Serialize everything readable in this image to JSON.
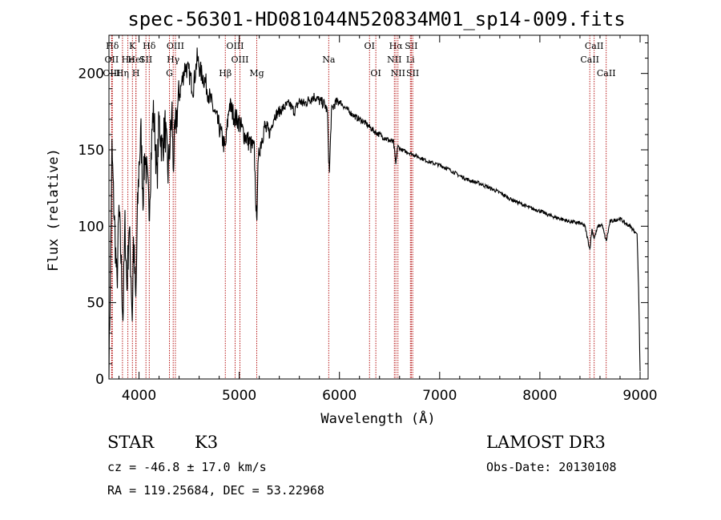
{
  "chart_data": {
    "type": "line",
    "title": "spec-56301-HD081044N520834M01_sp14-009.fits",
    "xlabel": "Wavelength (Å)",
    "ylabel": "Flux (relative)",
    "xlim": [
      3700,
      9080
    ],
    "ylim": [
      0,
      225
    ],
    "x_ticks": [
      4000,
      5000,
      6000,
      7000,
      8000,
      9000
    ],
    "y_ticks": [
      0,
      50,
      100,
      150,
      200
    ],
    "grid": false,
    "series": [
      {
        "name": "flux",
        "x": [
          3700,
          3715,
          3730,
          3745,
          3760,
          3780,
          3800,
          3820,
          3840,
          3860,
          3880,
          3900,
          3920,
          3933,
          3945,
          3968,
          3985,
          4000,
          4020,
          4040,
          4060,
          4080,
          4101,
          4120,
          4140,
          4160,
          4180,
          4200,
          4230,
          4260,
          4290,
          4310,
          4330,
          4340,
          4360,
          4380,
          4400,
          4430,
          4460,
          4500,
          4540,
          4580,
          4620,
          4660,
          4700,
          4750,
          4800,
          4861,
          4900,
          4950,
          5000,
          5050,
          5100,
          5150,
          5167,
          5173,
          5183,
          5200,
          5250,
          5300,
          5350,
          5400,
          5450,
          5500,
          5550,
          5600,
          5650,
          5700,
          5750,
          5800,
          5850,
          5880,
          5893,
          5900,
          5920,
          5950,
          6000,
          6050,
          6100,
          6150,
          6200,
          6250,
          6300,
          6350,
          6400,
          6450,
          6500,
          6540,
          6563,
          6580,
          6620,
          6700,
          6800,
          6900,
          7000,
          7100,
          7200,
          7300,
          7400,
          7500,
          7600,
          7700,
          7800,
          7900,
          8000,
          8100,
          8200,
          8300,
          8400,
          8450,
          8498,
          8520,
          8542,
          8580,
          8620,
          8662,
          8700,
          8750,
          8800,
          8850,
          8900,
          8940,
          8970,
          8985,
          9000
        ],
        "values": [
          5,
          70,
          150,
          120,
          95,
          60,
          110,
          80,
          40,
          100,
          60,
          100,
          70,
          40,
          90,
          50,
          110,
          140,
          160,
          120,
          150,
          130,
          110,
          145,
          175,
          160,
          130,
          170,
          150,
          165,
          135,
          155,
          175,
          140,
          160,
          175,
          185,
          195,
          205,
          200,
          190,
          210,
          200,
          195,
          185,
          175,
          165,
          150,
          180,
          172,
          168,
          160,
          155,
          150,
          115,
          100,
          130,
          150,
          165,
          160,
          172,
          175,
          178,
          180,
          175,
          182,
          180,
          183,
          185,
          182,
          180,
          175,
          145,
          135,
          175,
          180,
          182,
          178,
          175,
          172,
          170,
          168,
          165,
          162,
          160,
          158,
          156,
          155,
          140,
          152,
          150,
          148,
          145,
          142,
          140,
          137,
          133,
          130,
          128,
          125,
          122,
          118,
          115,
          112,
          110,
          107,
          105,
          103,
          102,
          100,
          85,
          98,
          92,
          100,
          101,
          90,
          103,
          104,
          105,
          102,
          100,
          97,
          95,
          60,
          5
        ]
      }
    ],
    "lines": [
      {
        "label": "Hδ",
        "x": 3734,
        "row": 1
      },
      {
        "label": "OII",
        "x": 3727,
        "row": 2
      },
      {
        "label": "OIII",
        "x": 3727,
        "row": 3
      },
      {
        "label": "He",
        "x": 3889,
        "row": 2
      },
      {
        "label": "K",
        "x": 3934,
        "row": 1
      },
      {
        "label": "HeI",
        "x": 3970,
        "row": 2
      },
      {
        "label": "Hη",
        "x": 3835,
        "row": 3
      },
      {
        "label": "SII",
        "x": 4069,
        "row": 2
      },
      {
        "label": "H",
        "x": 3969,
        "row": 3
      },
      {
        "label": "Hδ",
        "x": 4102,
        "row": 1
      },
      {
        "label": "OIII",
        "x": 4363,
        "row": 1
      },
      {
        "label": "Hγ",
        "x": 4341,
        "row": 2
      },
      {
        "label": "G",
        "x": 4304,
        "row": 3
      },
      {
        "label": "Hβ",
        "x": 4861,
        "row": 3
      },
      {
        "label": "OIII",
        "x": 4959,
        "row": 1
      },
      {
        "label": "OIII",
        "x": 5007,
        "row": 2
      },
      {
        "label": "Mg",
        "x": 5175,
        "row": 3
      },
      {
        "label": "Na",
        "x": 5893,
        "row": 2
      },
      {
        "label": "OI",
        "x": 6300,
        "row": 1
      },
      {
        "label": "OI",
        "x": 6363,
        "row": 3
      },
      {
        "label": "Hα",
        "x": 6563,
        "row": 1
      },
      {
        "label": "NII",
        "x": 6548,
        "row": 2
      },
      {
        "label": "NII",
        "x": 6584,
        "row": 3
      },
      {
        "label": "SII",
        "x": 6717,
        "row": 1
      },
      {
        "label": "Li",
        "x": 6708,
        "row": 2
      },
      {
        "label": "SII",
        "x": 6731,
        "row": 3
      },
      {
        "label": "CaII",
        "x": 8542,
        "row": 1
      },
      {
        "label": "CaII",
        "x": 8498,
        "row": 2
      },
      {
        "label": "CaII",
        "x": 8662,
        "row": 3
      }
    ]
  },
  "info": {
    "object_type": "STAR",
    "subclass": "K3",
    "survey": "LAMOST DR3",
    "cz": "cz = -46.8 ± 17.0 km/s",
    "obs_date": "Obs-Date: 20130108",
    "coords": "RA = 119.25684, DEC =  53.22968"
  }
}
